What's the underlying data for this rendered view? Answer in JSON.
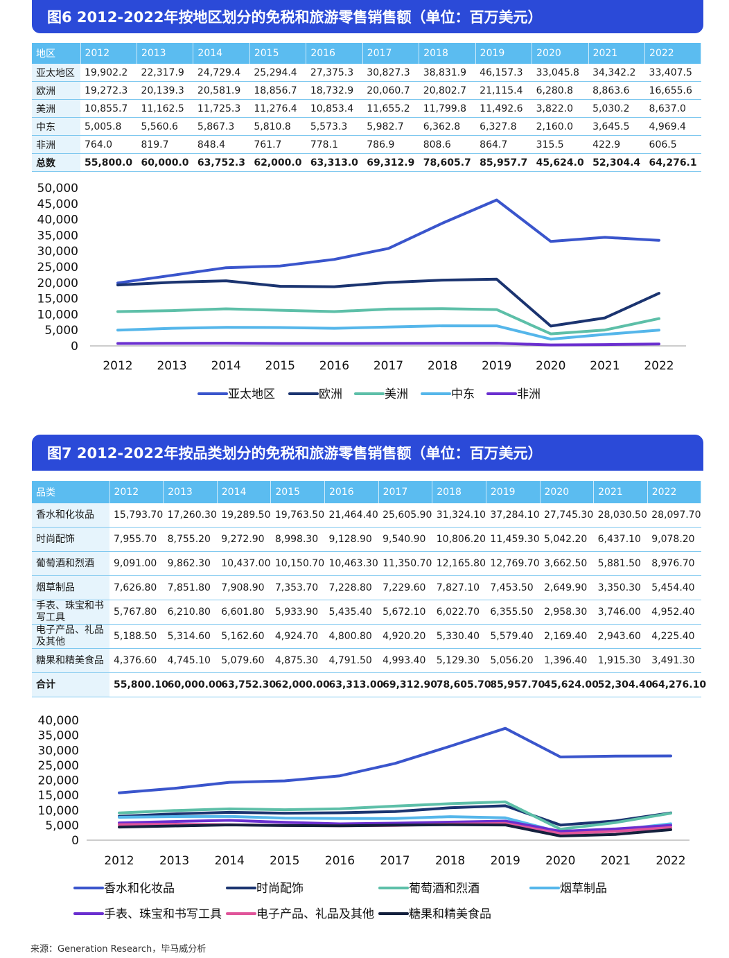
{
  "fig6": {
    "title": "图6 2012-2022年按地区划分的免税和旅游零售销售额（单位：百万美元）",
    "header": [
      "地区",
      "2012",
      "2013",
      "2014",
      "2015",
      "2016",
      "2017",
      "2018",
      "2019",
      "2020",
      "2021",
      "2022"
    ],
    "rows": [
      [
        "亚太地区",
        "19,902.2",
        "22,317.9",
        "24,729.4",
        "25,294.4",
        "27,375.3",
        "30,827.3",
        "38,831.9",
        "46,157.3",
        "33,045.8",
        "34,342.2",
        "33,407.5"
      ],
      [
        "欧洲",
        "19,272.3",
        "20,139.3",
        "20,581.9",
        "18,856.7",
        "18,732.9",
        "20,060.7",
        "20,802.7",
        "21,115.4",
        "6,280.8",
        "8,863.6",
        "16,655.6"
      ],
      [
        "美洲",
        "10,855.7",
        "11,162.5",
        "11,725.3",
        "11,276.4",
        "10,853.4",
        "11,655.2",
        "11,799.8",
        "11,492.6",
        "3,822.0",
        "5,030.2",
        "8,637.0"
      ],
      [
        "中东",
        "5,005.8",
        "5,560.6",
        "5,867.3",
        "5,810.8",
        "5,573.3",
        "5,982.7",
        "6,362.8",
        "6,327.8",
        "2,160.0",
        "3,645.5",
        "4,969.4"
      ],
      [
        "非洲",
        "764.0",
        "819.7",
        "848.4",
        "761.7",
        "778.1",
        "786.9",
        "808.6",
        "864.7",
        "315.5",
        "422.9",
        "606.5"
      ],
      [
        "总数",
        "55,800.0",
        "60,000.0",
        "63,752.3",
        "62,000.0",
        "63,313.0",
        "69,312.9",
        "78,605.7",
        "85,957.7",
        "45,624.0",
        "52,304.4",
        "64,276.1"
      ]
    ]
  },
  "fig7": {
    "title": "图7 2012-2022年按品类划分的免税和旅游零售销售额（单位：百万美元）",
    "header": [
      "品类",
      "2012",
      "2013",
      "2014",
      "2015",
      "2016",
      "2017",
      "2018",
      "2019",
      "2020",
      "2021",
      "2022"
    ],
    "rows": [
      [
        "香水和化妆品",
        "15,793.70",
        "17,260.30",
        "19,289.50",
        "19,763.50",
        "21,464.40",
        "25,605.90",
        "31,324.10",
        "37,284.10",
        "27,745.30",
        "28,030.50",
        "28,097.70"
      ],
      [
        "时尚配饰",
        "7,955.70",
        "8,755.20",
        "9,272.90",
        "8,998.30",
        "9,128.90",
        "9,540.90",
        "10,806.20",
        "11,459.30",
        "5,042.20",
        "6,437.10",
        "9,078.20"
      ],
      [
        "葡萄酒和烈酒",
        "9,091.00",
        "9,862.30",
        "10,437.00",
        "10,150.70",
        "10,463.30",
        "11,350.70",
        "12,165.80",
        "12,769.70",
        "3,662.50",
        "5,881.50",
        "8,976.70"
      ],
      [
        "烟草制品",
        "7,626.80",
        "7,851.80",
        "7,908.90",
        "7,353.70",
        "7,228.80",
        "7,229.60",
        "7,827.10",
        "7,453.50",
        "2,649.90",
        "3,350.30",
        "5,454.40"
      ],
      [
        "手表、珠宝和书写工具",
        "5,767.80",
        "6,210.80",
        "6,601.80",
        "5,933.90",
        "5,435.40",
        "5,672.10",
        "6,022.70",
        "6,355.50",
        "2,958.30",
        "3,746.00",
        "4,952.40"
      ],
      [
        "电子产品、礼品及其他",
        "5,188.50",
        "5,314.60",
        "5,162.60",
        "4,924.70",
        "4,800.80",
        "4,920.20",
        "5,330.40",
        "5,579.40",
        "2,169.40",
        "2,943.60",
        "4,225.40"
      ],
      [
        "糖果和精美食品",
        "4,376.60",
        "4,745.10",
        "5,079.60",
        "4,875.30",
        "4,791.50",
        "4,993.40",
        "5,129.30",
        "5,056.20",
        "1,396.40",
        "1,915.30",
        "3,491.30"
      ],
      [
        "合计",
        "55,800.10",
        "60,000.00",
        "63,752.30",
        "62,000.00",
        "63,313.00",
        "69,312.90",
        "78,605.70",
        "85,957.70",
        "45,624.00",
        "52,304.40",
        "64,276.10"
      ]
    ]
  },
  "chart_data": [
    {
      "type": "line",
      "title": "图6 2012-2022年按地区划分的免税和旅游零售销售额（单位：百万美元）",
      "categories": [
        "2012",
        "2013",
        "2014",
        "2015",
        "2016",
        "2017",
        "2018",
        "2019",
        "2020",
        "2021",
        "2022"
      ],
      "ylim": [
        0,
        50000
      ],
      "yticks": [
        "50,000",
        "45,000",
        "40,000",
        "35,000",
        "30,000",
        "25,000",
        "20,000",
        "15,000",
        "10,000",
        "5,000",
        "0"
      ],
      "ytick_values": [
        50000,
        45000,
        40000,
        35000,
        30000,
        25000,
        20000,
        15000,
        10000,
        5000,
        0
      ],
      "legend": "bottom",
      "series": [
        {
          "name": "亚太地区",
          "color": "#3a55cc",
          "values": [
            19902.2,
            22317.9,
            24729.4,
            25294.4,
            27375.3,
            30827.3,
            38831.9,
            46157.3,
            33045.8,
            34342.2,
            33407.5
          ]
        },
        {
          "name": "欧洲",
          "color": "#1b3470",
          "values": [
            19272.3,
            20139.3,
            20581.9,
            18856.7,
            18732.9,
            20060.7,
            20802.7,
            21115.4,
            6280.8,
            8863.6,
            16655.6
          ]
        },
        {
          "name": "美洲",
          "color": "#5dbfa8",
          "values": [
            10855.7,
            11162.5,
            11725.3,
            11276.4,
            10853.4,
            11655.2,
            11799.8,
            11492.6,
            3822.0,
            5030.2,
            8637.0
          ]
        },
        {
          "name": "中东",
          "color": "#55b6ea",
          "values": [
            5005.8,
            5560.6,
            5867.3,
            5810.8,
            5573.3,
            5982.7,
            6362.8,
            6327.8,
            2160.0,
            3645.5,
            4969.4
          ]
        },
        {
          "name": "非洲",
          "color": "#6a2fcf",
          "values": [
            764.0,
            819.7,
            848.4,
            761.7,
            778.1,
            786.9,
            808.6,
            864.7,
            315.5,
            422.9,
            606.5
          ]
        }
      ]
    },
    {
      "type": "line",
      "title": "图7 2012-2022年按品类划分的免税和旅游零售销售额（单位：百万美元）",
      "categories": [
        "2012",
        "2013",
        "2014",
        "2015",
        "2016",
        "2017",
        "2018",
        "2019",
        "2020",
        "2021",
        "2022"
      ],
      "ylim": [
        0,
        40000
      ],
      "yticks": [
        "40,000",
        "35,000",
        "30,000",
        "25,000",
        "20,000",
        "15,000",
        "10,000",
        "5,000",
        "0"
      ],
      "ytick_values": [
        40000,
        35000,
        30000,
        25000,
        20000,
        15000,
        10000,
        5000,
        0
      ],
      "legend": "bottom",
      "series": [
        {
          "name": "香水和化妆品",
          "color": "#3a55cc",
          "values": [
            15793.7,
            17260.3,
            19289.5,
            19763.5,
            21464.4,
            25605.9,
            31324.1,
            37284.1,
            27745.3,
            28030.5,
            28097.7
          ]
        },
        {
          "name": "时尚配饰",
          "color": "#1b3470",
          "values": [
            7955.7,
            8755.2,
            9272.9,
            8998.3,
            9128.9,
            9540.9,
            10806.2,
            11459.3,
            5042.2,
            6437.1,
            9078.2
          ]
        },
        {
          "name": "葡萄酒和烈酒",
          "color": "#5dbfa8",
          "values": [
            9091.0,
            9862.3,
            10437.0,
            10150.7,
            10463.3,
            11350.7,
            12165.8,
            12769.7,
            3662.5,
            5881.5,
            8976.7
          ]
        },
        {
          "name": "烟草制品",
          "color": "#55b6ea",
          "values": [
            7626.8,
            7851.8,
            7908.9,
            7353.7,
            7228.8,
            7229.6,
            7827.1,
            7453.5,
            2649.9,
            3350.3,
            5454.4
          ]
        },
        {
          "name": "手表、珠宝和书写工具",
          "color": "#6a2fcf",
          "values": [
            5767.8,
            6210.8,
            6601.8,
            5933.9,
            5435.4,
            5672.1,
            6022.7,
            6355.5,
            2958.3,
            3746.0,
            4952.4
          ]
        },
        {
          "name": "电子产品、礼品及其他",
          "color": "#e0559a",
          "values": [
            5188.5,
            5314.6,
            5162.6,
            4924.7,
            4800.8,
            4920.2,
            5330.4,
            5579.4,
            2169.4,
            2943.6,
            4225.4
          ]
        },
        {
          "name": "糖果和精美食品",
          "color": "#14203d",
          "values": [
            4376.6,
            4745.1,
            5079.6,
            4875.3,
            4791.5,
            4993.4,
            5129.3,
            5056.2,
            1396.4,
            1915.3,
            3491.3
          ]
        }
      ]
    }
  ],
  "source": "来源：Generation Research，毕马威分析"
}
